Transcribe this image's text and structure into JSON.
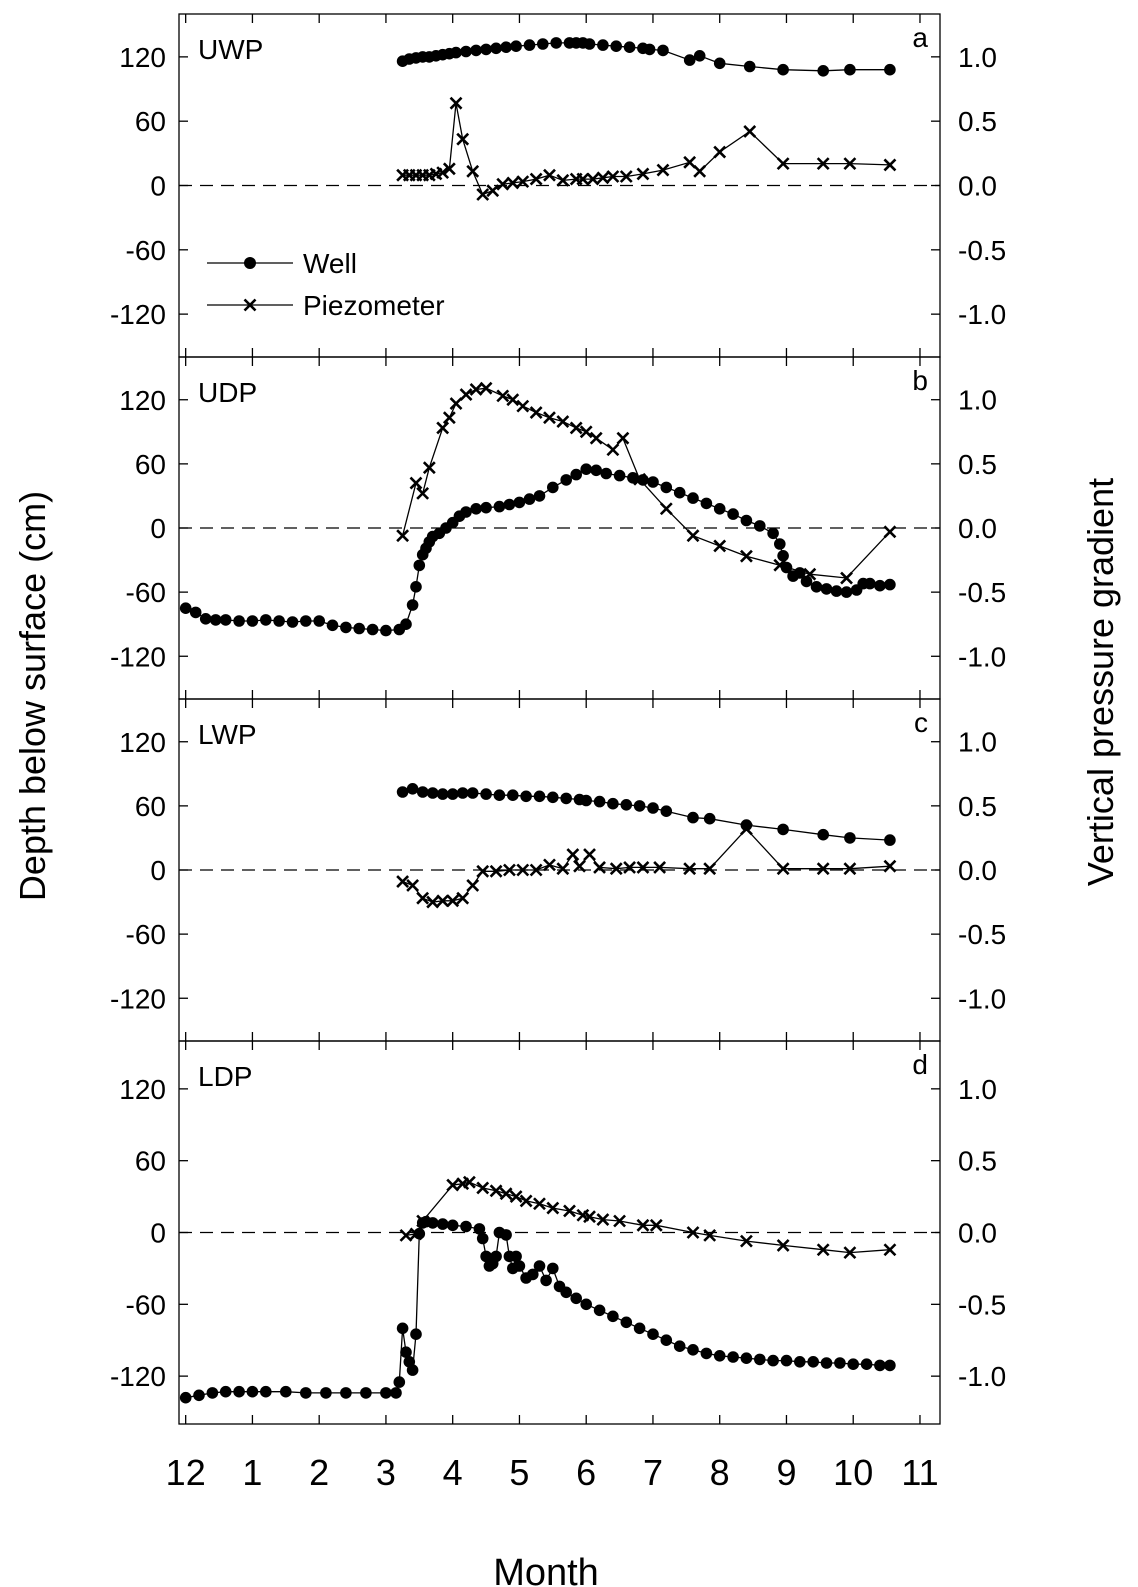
{
  "figure": {
    "y_left_label": "Depth below surface (cm)",
    "y_right_label": "Vertical pressure gradient",
    "x_label": "Month",
    "x_tick_labels": [
      "12",
      "1",
      "2",
      "3",
      "4",
      "5",
      "6",
      "7",
      "8",
      "9",
      "10",
      "11"
    ],
    "legend": {
      "well": "Well",
      "piezometer": "Piezometer"
    }
  },
  "chart_data": [
    {
      "type": "line",
      "panel_label": "UWP",
      "panel_letter": "a",
      "x_unit": "month (12 = December, 13 = January, ... 23 = November)",
      "xlim": [
        11.9,
        23.3
      ],
      "left_ylim": [
        -160,
        160
      ],
      "left_yticks": [
        -120,
        -60,
        0,
        60,
        120
      ],
      "right_ylim": [
        -1.333,
        1.333
      ],
      "right_yticks": [
        -1.0,
        -0.5,
        0.0,
        0.5,
        1.0
      ],
      "reference_line_y": 0,
      "series": [
        {
          "name": "Well",
          "axis": "left",
          "marker": "circle",
          "x": [
            15.25,
            15.35,
            15.45,
            15.55,
            15.65,
            15.75,
            15.85,
            15.95,
            16.05,
            16.2,
            16.35,
            16.5,
            16.65,
            16.8,
            16.95,
            17.15,
            17.35,
            17.55,
            17.75,
            17.85,
            17.95,
            18.05,
            18.25,
            18.45,
            18.65,
            18.85,
            18.95,
            19.15,
            19.55,
            19.7,
            20.0,
            20.45,
            20.95,
            21.55,
            21.95,
            22.55
          ],
          "y": [
            116,
            118,
            119,
            120,
            120,
            121,
            122,
            123,
            124,
            125,
            126,
            127,
            128,
            129,
            130,
            131,
            132,
            133,
            133,
            133,
            133,
            132,
            131,
            130,
            129,
            128,
            127,
            126,
            117,
            121,
            114,
            111,
            108,
            107,
            108,
            108
          ]
        },
        {
          "name": "Piezometer",
          "axis": "right",
          "marker": "x",
          "x": [
            15.25,
            15.35,
            15.45,
            15.55,
            15.65,
            15.75,
            15.85,
            15.95,
            16.05,
            16.15,
            16.3,
            16.45,
            16.6,
            16.75,
            16.9,
            17.05,
            17.25,
            17.45,
            17.65,
            17.85,
            17.95,
            18.1,
            18.25,
            18.4,
            18.6,
            18.85,
            19.15,
            19.55,
            19.7,
            20.0,
            20.45,
            20.95,
            21.55,
            21.95,
            22.55
          ],
          "y": [
            0.08,
            0.08,
            0.08,
            0.08,
            0.08,
            0.09,
            0.1,
            0.13,
            0.64,
            0.36,
            0.11,
            -0.07,
            -0.04,
            0.01,
            0.02,
            0.03,
            0.05,
            0.08,
            0.04,
            0.05,
            0.05,
            0.05,
            0.06,
            0.07,
            0.07,
            0.09,
            0.12,
            0.18,
            0.11,
            0.26,
            0.42,
            0.17,
            0.17,
            0.17,
            0.16
          ]
        }
      ]
    },
    {
      "type": "line",
      "panel_label": "UDP",
      "panel_letter": "b",
      "xlim": [
        11.9,
        23.3
      ],
      "left_ylim": [
        -160,
        160
      ],
      "left_yticks": [
        -120,
        -60,
        0,
        60,
        120
      ],
      "right_ylim": [
        -1.333,
        1.333
      ],
      "right_yticks": [
        -1.0,
        -0.5,
        0.0,
        0.5,
        1.0
      ],
      "reference_line_y": 0,
      "series": [
        {
          "name": "Well",
          "axis": "left",
          "marker": "circle",
          "x": [
            12.0,
            12.15,
            12.3,
            12.45,
            12.6,
            12.8,
            13.0,
            13.2,
            13.4,
            13.6,
            13.8,
            14.0,
            14.2,
            14.4,
            14.6,
            14.8,
            15.0,
            15.2,
            15.3,
            15.4,
            15.45,
            15.5,
            15.55,
            15.6,
            15.65,
            15.7,
            15.8,
            15.9,
            16.0,
            16.1,
            16.2,
            16.35,
            16.5,
            16.7,
            16.85,
            17.0,
            17.15,
            17.3,
            17.5,
            17.7,
            17.85,
            18.0,
            18.15,
            18.3,
            18.5,
            18.7,
            18.85,
            19.0,
            19.2,
            19.4,
            19.6,
            19.8,
            20.0,
            20.2,
            20.4,
            20.6,
            20.8,
            20.9,
            20.95,
            21.0,
            21.1,
            21.2,
            21.3,
            21.45,
            21.6,
            21.75,
            21.9,
            22.05,
            22.15,
            22.25,
            22.4,
            22.55
          ],
          "y": [
            -75,
            -79,
            -85,
            -86,
            -86,
            -87,
            -87,
            -86,
            -87,
            -88,
            -87,
            -87,
            -91,
            -93,
            -94,
            -95,
            -96,
            -95,
            -90,
            -72,
            -55,
            -35,
            -25,
            -19,
            -13,
            -8,
            -5,
            0,
            5,
            11,
            15,
            18,
            19,
            20,
            22,
            24,
            27,
            30,
            38,
            45,
            50,
            55,
            54,
            51,
            49,
            47,
            45,
            43,
            38,
            33,
            28,
            23,
            18,
            13,
            7,
            2,
            -5,
            -15,
            -26,
            -37,
            -45,
            -42,
            -50,
            -55,
            -57,
            -59,
            -60,
            -58,
            -52,
            -52,
            -54,
            -53
          ]
        },
        {
          "name": "Piezometer",
          "axis": "right",
          "marker": "x",
          "x": [
            15.25,
            15.45,
            15.55,
            15.65,
            15.85,
            15.95,
            16.05,
            16.2,
            16.35,
            16.5,
            16.75,
            16.9,
            17.05,
            17.25,
            17.45,
            17.65,
            17.85,
            18.0,
            18.15,
            18.4,
            18.55,
            18.8,
            19.2,
            19.6,
            20.0,
            20.4,
            20.9,
            21.35,
            21.9,
            22.55
          ],
          "y": [
            -0.06,
            0.35,
            0.27,
            0.47,
            0.78,
            0.86,
            0.97,
            1.04,
            1.08,
            1.09,
            1.03,
            1.0,
            0.95,
            0.9,
            0.86,
            0.83,
            0.78,
            0.75,
            0.7,
            0.61,
            0.7,
            0.38,
            0.15,
            -0.06,
            -0.14,
            -0.22,
            -0.29,
            -0.36,
            -0.39,
            -0.03
          ]
        }
      ]
    },
    {
      "type": "line",
      "panel_label": "LWP",
      "panel_letter": "c",
      "xlim": [
        11.9,
        23.3
      ],
      "left_ylim": [
        -160,
        160
      ],
      "left_yticks": [
        -120,
        -60,
        0,
        60,
        120
      ],
      "right_ylim": [
        -1.333,
        1.333
      ],
      "right_yticks": [
        -1.0,
        -0.5,
        0.0,
        0.5,
        1.0
      ],
      "reference_line_y": 0,
      "series": [
        {
          "name": "Well",
          "axis": "left",
          "marker": "circle",
          "x": [
            15.25,
            15.4,
            15.55,
            15.7,
            15.85,
            16.0,
            16.15,
            16.3,
            16.5,
            16.7,
            16.9,
            17.1,
            17.3,
            17.5,
            17.7,
            17.9,
            18.0,
            18.2,
            18.4,
            18.6,
            18.8,
            19.0,
            19.2,
            19.6,
            19.85,
            20.4,
            20.95,
            21.55,
            21.95,
            22.55
          ],
          "y": [
            73,
            76,
            73,
            72,
            71,
            71,
            72,
            72,
            71,
            70,
            70,
            69,
            69,
            68,
            67,
            66,
            65,
            64,
            62,
            61,
            60,
            58,
            55,
            49,
            48,
            42,
            38,
            33,
            30,
            28
          ]
        },
        {
          "name": "Piezometer",
          "axis": "right",
          "marker": "x",
          "x": [
            15.25,
            15.4,
            15.55,
            15.7,
            15.85,
            16.0,
            16.15,
            16.3,
            16.45,
            16.65,
            16.85,
            17.05,
            17.25,
            17.45,
            17.65,
            17.8,
            17.9,
            18.05,
            18.2,
            18.45,
            18.65,
            18.85,
            19.1,
            19.55,
            19.85,
            20.4,
            20.95,
            21.55,
            21.95,
            22.55
          ],
          "y": [
            -0.09,
            -0.12,
            -0.22,
            -0.25,
            -0.24,
            -0.24,
            -0.22,
            -0.12,
            -0.01,
            -0.01,
            0.0,
            0.0,
            0.0,
            0.04,
            0.01,
            0.12,
            0.03,
            0.12,
            0.02,
            0.01,
            0.02,
            0.02,
            0.02,
            0.01,
            0.01,
            0.32,
            0.01,
            0.01,
            0.01,
            0.03
          ]
        }
      ]
    },
    {
      "type": "line",
      "panel_label": "LDP",
      "panel_letter": "d",
      "xlim": [
        11.9,
        23.3
      ],
      "left_ylim": [
        -160,
        160
      ],
      "left_yticks": [
        -120,
        -60,
        0,
        60,
        120
      ],
      "right_ylim": [
        -1.333,
        1.333
      ],
      "right_yticks": [
        -1.0,
        -0.5,
        0.0,
        0.5,
        1.0
      ],
      "reference_line_y": 0,
      "series": [
        {
          "name": "Well",
          "axis": "left",
          "marker": "circle",
          "x": [
            12.0,
            12.2,
            12.4,
            12.6,
            12.8,
            13.0,
            13.2,
            13.5,
            13.8,
            14.1,
            14.4,
            14.7,
            15.0,
            15.15,
            15.2,
            15.25,
            15.3,
            15.35,
            15.4,
            15.45,
            15.5,
            15.55,
            15.6,
            15.7,
            15.85,
            16.0,
            16.2,
            16.4,
            16.45,
            16.5,
            16.55,
            16.6,
            16.65,
            16.7,
            16.8,
            16.85,
            16.9,
            16.95,
            17.0,
            17.1,
            17.2,
            17.3,
            17.4,
            17.5,
            17.6,
            17.7,
            17.85,
            18.0,
            18.2,
            18.4,
            18.6,
            18.8,
            19.0,
            19.2,
            19.4,
            19.6,
            19.8,
            20.0,
            20.2,
            20.4,
            20.6,
            20.8,
            21.0,
            21.2,
            21.4,
            21.6,
            21.8,
            22.0,
            22.2,
            22.4,
            22.55
          ],
          "y": [
            -138,
            -136,
            -134,
            -133,
            -133,
            -133,
            -133,
            -133,
            -134,
            -134,
            -134,
            -134,
            -134,
            -134,
            -125,
            -80,
            -100,
            -108,
            -115,
            -85,
            -1,
            8,
            9,
            8,
            7,
            6,
            5,
            3,
            -5,
            -20,
            -28,
            -26,
            -20,
            0,
            -2,
            -20,
            -30,
            -20,
            -28,
            -38,
            -35,
            -28,
            -40,
            -30,
            -45,
            -50,
            -55,
            -60,
            -65,
            -70,
            -75,
            -80,
            -85,
            -90,
            -95,
            -98,
            -101,
            -103,
            -104,
            -105,
            -106,
            -107,
            -107,
            -108,
            -108,
            -109,
            -109,
            -110,
            -110,
            -111,
            -111
          ]
        },
        {
          "name": "Piezometer",
          "axis": "right",
          "marker": "x",
          "x": [
            15.3,
            15.45,
            15.55,
            16.0,
            16.15,
            16.25,
            16.45,
            16.65,
            16.8,
            16.95,
            17.1,
            17.3,
            17.5,
            17.75,
            17.95,
            18.05,
            18.25,
            18.5,
            18.85,
            19.05,
            19.6,
            19.85,
            20.4,
            20.95,
            21.55,
            21.95,
            22.55
          ],
          "y": [
            -0.02,
            -0.01,
            0.08,
            0.33,
            0.34,
            0.35,
            0.31,
            0.29,
            0.27,
            0.25,
            0.22,
            0.2,
            0.17,
            0.15,
            0.12,
            0.11,
            0.09,
            0.08,
            0.05,
            0.05,
            0.0,
            -0.02,
            -0.06,
            -0.09,
            -0.12,
            -0.14,
            -0.12
          ]
        }
      ]
    }
  ]
}
